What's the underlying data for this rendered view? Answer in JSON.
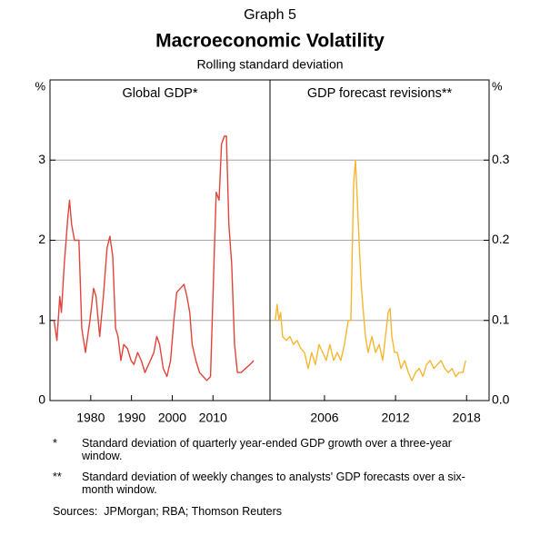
{
  "graph_label": "Graph 5",
  "title": "Macroeconomic Volatility",
  "subtitle": "Rolling standard deviation",
  "notes": [
    {
      "symbol": "*",
      "text": "Standard deviation of quarterly year-ended GDP growth over a three-year window."
    },
    {
      "symbol": "**",
      "text": "Standard deviation of weekly changes to analysts' GDP forecasts over a six-month window."
    }
  ],
  "sources_label": "Sources:",
  "sources": "JPMorgan; RBA; Thomson Reuters",
  "chart_data": [
    {
      "type": "line",
      "title": "Global GDP*",
      "y_unit": "%",
      "axis_side": "left",
      "color": "#e0443a",
      "grid": true,
      "xlim": [
        1970,
        2024
      ],
      "xticks": [
        1980,
        1990,
        2000,
        2010
      ],
      "ylim": [
        0,
        4
      ],
      "yticks": [
        0,
        1,
        2,
        3
      ],
      "x": [
        1971.0,
        1971.7,
        1972.4,
        1972.8,
        1973.5,
        1974.4,
        1974.8,
        1975.3,
        1976.0,
        1977.1,
        1977.8,
        1978.7,
        1979.8,
        1980.7,
        1981.3,
        1982.2,
        1983.1,
        1984.0,
        1984.7,
        1985.4,
        1986.1,
        1986.7,
        1987.4,
        1988.1,
        1989.0,
        1989.9,
        1990.6,
        1991.5,
        1992.4,
        1993.3,
        1994.2,
        1995.5,
        1996.2,
        1996.9,
        1997.8,
        1998.7,
        1999.6,
        2000.4,
        2001.1,
        2002.0,
        2002.9,
        2003.6,
        2004.3,
        2004.9,
        2005.8,
        2006.7,
        2007.6,
        2008.5,
        2009.4,
        2010.3,
        2010.8,
        2011.5,
        2012.1,
        2012.8,
        2013.3,
        2013.9,
        2014.6,
        2015.3,
        2016.0,
        2016.9,
        2018.0,
        2019.1,
        2020.0
      ],
      "values": [
        1.0,
        0.75,
        1.3,
        1.1,
        1.7,
        2.3,
        2.5,
        2.2,
        2.0,
        2.0,
        0.9,
        0.6,
        1.0,
        1.4,
        1.3,
        0.8,
        1.3,
        1.9,
        2.05,
        1.8,
        0.9,
        0.8,
        0.5,
        0.7,
        0.65,
        0.5,
        0.45,
        0.6,
        0.5,
        0.35,
        0.45,
        0.6,
        0.8,
        0.7,
        0.4,
        0.3,
        0.5,
        1.0,
        1.35,
        1.4,
        1.45,
        1.3,
        1.1,
        0.7,
        0.5,
        0.35,
        0.3,
        0.25,
        0.3,
        1.8,
        2.6,
        2.5,
        3.2,
        3.3,
        3.3,
        2.2,
        1.7,
        0.7,
        0.35,
        0.35,
        0.4,
        0.45,
        0.5
      ]
    },
    {
      "type": "line",
      "title": "GDP forecast revisions**",
      "y_unit": "%",
      "axis_side": "right",
      "color": "#f5b731",
      "grid": true,
      "xlim": [
        2001.4,
        2019.9
      ],
      "xticks": [
        2006,
        2012,
        2018
      ],
      "ylim": [
        0,
        0.4
      ],
      "yticks": [
        {
          "value": 0,
          "label": "0.0"
        },
        {
          "value": 0.1,
          "label": "0.1"
        },
        {
          "value": 0.2,
          "label": "0.2"
        },
        {
          "value": 0.3,
          "label": "0.3"
        }
      ],
      "x": [
        2001.85,
        2002.0,
        2002.15,
        2002.3,
        2002.46,
        2002.77,
        2003.08,
        2003.38,
        2003.69,
        2004.0,
        2004.31,
        2004.62,
        2004.92,
        2005.23,
        2005.54,
        2005.85,
        2006.15,
        2006.46,
        2006.77,
        2007.08,
        2007.38,
        2007.69,
        2008.0,
        2008.23,
        2008.46,
        2008.62,
        2008.77,
        2008.92,
        2009.08,
        2009.23,
        2009.46,
        2009.69,
        2010.0,
        2010.31,
        2010.62,
        2010.92,
        2011.15,
        2011.38,
        2011.54,
        2011.69,
        2011.92,
        2012.15,
        2012.46,
        2012.77,
        2013.08,
        2013.38,
        2013.69,
        2014.0,
        2014.31,
        2014.62,
        2014.92,
        2015.23,
        2015.54,
        2015.85,
        2016.15,
        2016.46,
        2016.77,
        2017.08,
        2017.38,
        2017.69,
        2017.92
      ],
      "values": [
        0.1,
        0.12,
        0.1,
        0.11,
        0.08,
        0.075,
        0.08,
        0.07,
        0.075,
        0.065,
        0.06,
        0.04,
        0.06,
        0.045,
        0.07,
        0.06,
        0.05,
        0.07,
        0.05,
        0.06,
        0.05,
        0.07,
        0.1,
        0.1,
        0.27,
        0.3,
        0.25,
        0.2,
        0.15,
        0.12,
        0.08,
        0.06,
        0.08,
        0.06,
        0.07,
        0.05,
        0.08,
        0.11,
        0.115,
        0.08,
        0.06,
        0.06,
        0.04,
        0.05,
        0.035,
        0.025,
        0.035,
        0.04,
        0.03,
        0.045,
        0.05,
        0.04,
        0.045,
        0.05,
        0.04,
        0.035,
        0.04,
        0.03,
        0.035,
        0.035,
        0.05
      ]
    }
  ]
}
